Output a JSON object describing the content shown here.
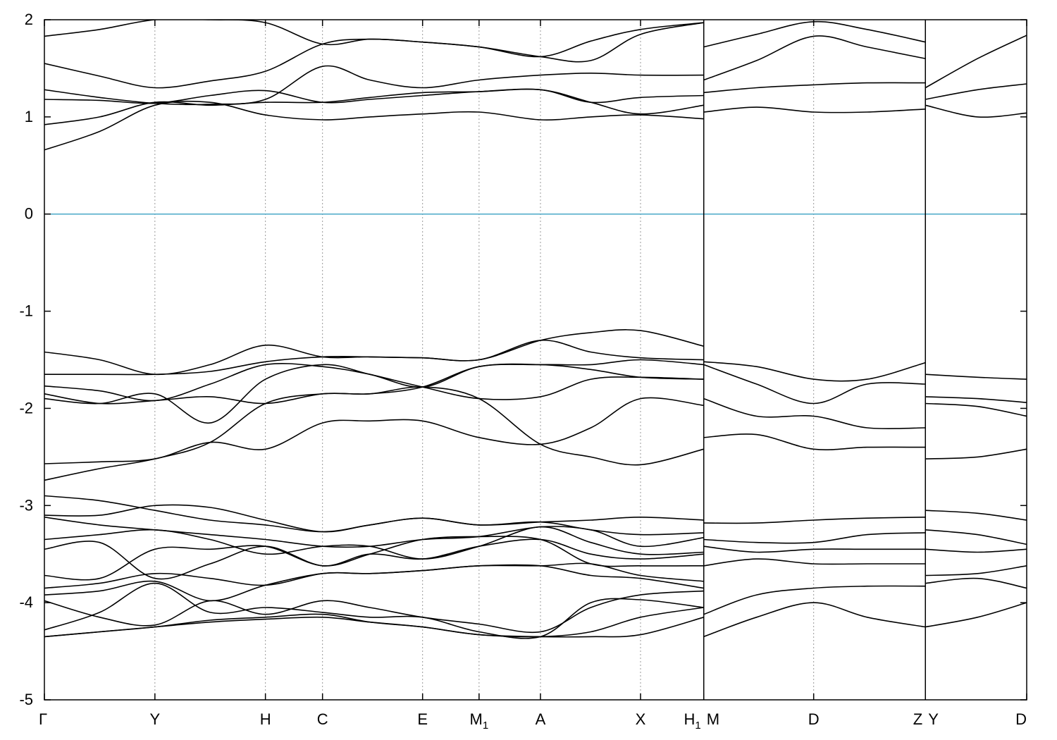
{
  "chart_data": {
    "type": "line",
    "title": "",
    "xlabel": "",
    "ylabel": "",
    "ylim": [
      -5,
      2
    ],
    "yticks": [
      {
        "value": -5,
        "label": "-5"
      },
      {
        "value": -4,
        "label": "-4"
      },
      {
        "value": -3,
        "label": "-3"
      },
      {
        "value": -2,
        "label": "-2"
      },
      {
        "value": -1,
        "label": "-1"
      },
      {
        "value": 0,
        "label": "0"
      },
      {
        "value": 1,
        "label": "1"
      },
      {
        "value": 2,
        "label": "2"
      }
    ],
    "xlim": [
      0,
      16.0
    ],
    "kpoints": [
      {
        "label": "Γ",
        "x": 0.0
      },
      {
        "label": "Y",
        "x": 1.8
      },
      {
        "label": "H",
        "x": 3.6
      },
      {
        "label": "C",
        "x": 4.53
      },
      {
        "label": "E",
        "x": 6.16
      },
      {
        "label": "M",
        "sub": "1",
        "x": 7.08
      },
      {
        "label": "A",
        "x": 8.08
      },
      {
        "label": "X",
        "x": 9.71
      },
      {
        "label": "H",
        "sub": "1",
        "label2": "M",
        "x": 10.74
      },
      {
        "label": "D",
        "x": 12.53
      },
      {
        "label": "Z",
        "label2": "Y",
        "x": 14.35
      },
      {
        "label": "D",
        "x": 16.0
      }
    ],
    "fermi_level": 0,
    "fermi_color": "#4aa8c8",
    "line_color": "#000000",
    "grid": "vertical dotted at k-points",
    "series": [
      {
        "x": [
          0,
          0.9,
          1.8,
          2.7,
          3.6,
          4.53,
          5.3,
          6.16,
          7.08,
          8.08,
          8.9,
          9.71,
          10.74
        ],
        "values": [
          0.66,
          0.85,
          1.12,
          1.15,
          1.02,
          0.97,
          1.0,
          1.03,
          1.05,
          0.97,
          1.0,
          1.02,
          0.98
        ]
      },
      {
        "x": [
          0,
          0.9,
          1.8,
          2.7,
          3.6,
          4.53,
          5.3,
          6.16,
          7.08,
          8.08,
          8.9,
          9.71,
          10.74
        ],
        "values": [
          0.92,
          1.0,
          1.15,
          1.12,
          1.15,
          1.15,
          1.2,
          1.25,
          1.26,
          1.28,
          1.15,
          1.03,
          1.12
        ]
      },
      {
        "x": [
          0,
          0.9,
          1.8,
          2.7,
          3.6,
          4.53,
          5.3,
          6.16,
          7.08,
          8.08,
          8.9,
          9.71,
          10.74
        ],
        "values": [
          1.18,
          1.17,
          1.14,
          1.22,
          1.27,
          1.15,
          1.18,
          1.22,
          1.26,
          1.28,
          1.15,
          1.2,
          1.22
        ]
      },
      {
        "x": [
          0,
          0.9,
          1.8,
          2.7,
          3.6,
          4.53,
          5.3,
          6.16,
          7.08,
          8.08,
          8.9,
          9.71,
          10.74
        ],
        "values": [
          1.28,
          1.2,
          1.14,
          1.13,
          1.18,
          1.52,
          1.38,
          1.3,
          1.38,
          1.43,
          1.45,
          1.43,
          1.43
        ]
      },
      {
        "x": [
          0,
          0.9,
          1.8,
          2.7,
          3.6,
          4.53,
          5.3,
          6.16,
          7.08,
          8.08,
          8.9,
          9.71,
          10.74
        ],
        "values": [
          1.55,
          1.42,
          1.3,
          1.37,
          1.47,
          1.75,
          1.8,
          1.77,
          1.72,
          1.62,
          1.58,
          1.85,
          1.97
        ]
      },
      {
        "x": [
          0,
          0.9,
          1.8,
          2.7,
          3.6,
          4.53,
          5.3,
          6.16,
          7.08,
          8.08,
          8.9,
          9.71,
          10.74
        ],
        "values": [
          1.83,
          1.9,
          2.0,
          2.0,
          1.97,
          1.75,
          1.8,
          1.77,
          1.72,
          1.62,
          1.78,
          1.9,
          1.97
        ]
      },
      {
        "x": [
          10.74,
          11.6,
          12.53,
          13.4,
          14.35
        ],
        "values": [
          1.05,
          1.1,
          1.05,
          1.05,
          1.08
        ]
      },
      {
        "x": [
          10.74,
          11.6,
          12.53,
          13.4,
          14.35
        ],
        "values": [
          1.25,
          1.3,
          1.33,
          1.35,
          1.35
        ]
      },
      {
        "x": [
          10.74,
          11.6,
          12.53,
          13.4,
          14.35
        ],
        "values": [
          1.38,
          1.58,
          1.83,
          1.72,
          1.6
        ]
      },
      {
        "x": [
          10.74,
          11.6,
          12.53,
          13.4,
          14.35
        ],
        "values": [
          1.72,
          1.85,
          1.98,
          1.9,
          1.77
        ]
      },
      {
        "x": [
          14.35,
          15.2,
          16.0
        ],
        "values": [
          1.12,
          1.0,
          1.04
        ]
      },
      {
        "x": [
          14.35,
          15.2,
          16.0
        ],
        "values": [
          1.18,
          1.28,
          1.34
        ]
      },
      {
        "x": [
          14.35,
          15.2,
          16.0
        ],
        "values": [
          1.3,
          1.6,
          1.84
        ]
      },
      {
        "x": [
          0,
          0.9,
          1.8,
          2.7,
          3.6,
          4.53,
          5.3,
          6.16,
          7.08,
          8.08,
          8.9,
          9.71,
          10.74
        ],
        "values": [
          -1.42,
          -1.5,
          -1.65,
          -1.55,
          -1.35,
          -1.47,
          -1.47,
          -1.48,
          -1.5,
          -1.3,
          -1.22,
          -1.2,
          -1.36
        ]
      },
      {
        "x": [
          0,
          0.9,
          1.8,
          2.7,
          3.6,
          4.53,
          5.3,
          6.16,
          7.08,
          8.08,
          8.9,
          9.71,
          10.74
        ],
        "values": [
          -1.65,
          -1.65,
          -1.65,
          -1.62,
          -1.52,
          -1.47,
          -1.47,
          -1.48,
          -1.5,
          -1.3,
          -1.42,
          -1.48,
          -1.5
        ]
      },
      {
        "x": [
          0,
          0.9,
          1.8,
          2.7,
          3.6,
          4.53,
          5.3,
          6.16,
          7.08,
          8.08,
          8.9,
          9.71,
          10.74
        ],
        "values": [
          -1.77,
          -1.82,
          -1.92,
          -1.75,
          -1.55,
          -1.57,
          -1.65,
          -1.78,
          -1.57,
          -1.55,
          -1.55,
          -1.5,
          -1.55
        ]
      },
      {
        "x": [
          0,
          0.9,
          1.8,
          2.7,
          3.6,
          4.53,
          5.3,
          6.16,
          7.08,
          8.08,
          8.9,
          9.71,
          10.74
        ],
        "values": [
          -1.85,
          -1.95,
          -1.92,
          -1.88,
          -1.95,
          -1.85,
          -1.85,
          -1.78,
          -1.57,
          -1.55,
          -1.6,
          -1.68,
          -1.7
        ]
      },
      {
        "x": [
          0,
          0.9,
          1.8,
          2.7,
          3.6,
          4.53,
          5.3,
          6.16,
          7.08,
          8.08,
          8.9,
          9.71,
          10.74
        ],
        "values": [
          -1.9,
          -1.95,
          -1.85,
          -2.15,
          -1.7,
          -1.55,
          -1.65,
          -1.78,
          -1.9,
          -1.88,
          -1.7,
          -1.68,
          -1.7
        ]
      },
      {
        "x": [
          0,
          0.9,
          1.8,
          2.7,
          3.6,
          4.53,
          5.3,
          6.16,
          7.08,
          8.08,
          8.9,
          9.71,
          10.74
        ],
        "values": [
          -2.57,
          -2.55,
          -2.52,
          -2.35,
          -2.42,
          -2.15,
          -2.13,
          -2.13,
          -2.3,
          -2.37,
          -2.2,
          -1.9,
          -1.97
        ]
      },
      {
        "x": [
          0,
          0.9,
          1.8,
          2.7,
          3.6,
          4.53,
          5.3,
          6.16,
          7.08,
          8.08,
          8.9,
          9.71,
          10.74
        ],
        "values": [
          -2.74,
          -2.62,
          -2.52,
          -2.35,
          -1.95,
          -1.85,
          -1.85,
          -1.78,
          -1.9,
          -2.37,
          -2.5,
          -2.58,
          -2.42
        ]
      },
      {
        "x": [
          10.74,
          11.6,
          12.53,
          13.4,
          14.35
        ],
        "values": [
          -1.52,
          -1.57,
          -1.7,
          -1.7,
          -1.53
        ]
      },
      {
        "x": [
          10.74,
          11.6,
          12.53,
          13.4,
          14.35
        ],
        "values": [
          -1.55,
          -1.75,
          -1.95,
          -1.75,
          -1.75
        ]
      },
      {
        "x": [
          10.74,
          11.6,
          12.53,
          13.4,
          14.35
        ],
        "values": [
          -1.9,
          -2.08,
          -2.08,
          -2.2,
          -2.2
        ]
      },
      {
        "x": [
          10.74,
          11.6,
          12.53,
          13.4,
          14.35
        ],
        "values": [
          -2.3,
          -2.27,
          -2.42,
          -2.4,
          -2.4
        ]
      },
      {
        "x": [
          14.35,
          15.2,
          16.0
        ],
        "values": [
          -1.65,
          -1.68,
          -1.7
        ]
      },
      {
        "x": [
          14.35,
          15.2,
          16.0
        ],
        "values": [
          -1.88,
          -1.9,
          -1.94
        ]
      },
      {
        "x": [
          14.35,
          15.2,
          16.0
        ],
        "values": [
          -1.95,
          -1.98,
          -2.08
        ]
      },
      {
        "x": [
          14.35,
          15.2,
          16.0
        ],
        "values": [
          -2.52,
          -2.5,
          -2.42
        ]
      },
      {
        "x": [
          0,
          0.9,
          1.8,
          2.7,
          3.6,
          4.53,
          5.3,
          6.16,
          7.08,
          8.08,
          8.9,
          9.71,
          10.74
        ],
        "values": [
          -2.9,
          -2.95,
          -3.05,
          -3.15,
          -3.2,
          -3.27,
          -3.2,
          -3.13,
          -3.2,
          -3.17,
          -3.15,
          -3.12,
          -3.15
        ]
      },
      {
        "x": [
          0,
          0.9,
          1.8,
          2.7,
          3.6,
          4.53,
          5.3,
          6.16,
          7.08,
          8.08,
          8.9,
          9.71,
          10.74
        ],
        "values": [
          -3.1,
          -3.1,
          -3.0,
          -3.02,
          -3.15,
          -3.27,
          -3.2,
          -3.13,
          -3.2,
          -3.17,
          -3.25,
          -3.3,
          -3.28
        ]
      },
      {
        "x": [
          0,
          0.9,
          1.8,
          2.7,
          3.6,
          4.53,
          5.3,
          6.16,
          7.08,
          8.08,
          8.9,
          9.71,
          10.74
        ],
        "values": [
          -3.12,
          -3.2,
          -3.25,
          -3.3,
          -3.35,
          -3.42,
          -3.42,
          -3.35,
          -3.32,
          -3.22,
          -3.25,
          -3.42,
          -3.33
        ]
      },
      {
        "x": [
          0,
          0.9,
          1.8,
          2.7,
          3.6,
          4.53,
          5.3,
          6.16,
          7.08,
          8.08,
          8.9,
          9.71,
          10.74
        ],
        "values": [
          -3.35,
          -3.3,
          -3.25,
          -3.35,
          -3.5,
          -3.42,
          -3.42,
          -3.55,
          -3.42,
          -3.22,
          -3.38,
          -3.5,
          -3.48
        ]
      },
      {
        "x": [
          0,
          0.9,
          1.8,
          2.7,
          3.6,
          4.53,
          5.3,
          6.16,
          7.08,
          8.08,
          8.9,
          9.71,
          10.74
        ],
        "values": [
          -3.45,
          -3.38,
          -3.75,
          -3.6,
          -3.42,
          -3.62,
          -3.5,
          -3.55,
          -3.42,
          -3.35,
          -3.5,
          -3.55,
          -3.5
        ]
      },
      {
        "x": [
          0,
          0.9,
          1.8,
          2.7,
          3.6,
          4.53,
          5.3,
          6.16,
          7.08,
          8.08,
          8.9,
          9.71,
          10.74
        ],
        "values": [
          -3.72,
          -3.75,
          -3.45,
          -3.45,
          -3.42,
          -3.62,
          -3.5,
          -3.35,
          -3.32,
          -3.35,
          -3.6,
          -3.62,
          -3.62
        ]
      },
      {
        "x": [
          0,
          0.9,
          1.8,
          2.7,
          3.6,
          4.53,
          5.3,
          6.16,
          7.08,
          8.08,
          8.9,
          9.71,
          10.74
        ],
        "values": [
          -3.85,
          -3.8,
          -3.7,
          -3.75,
          -3.82,
          -3.7,
          -3.7,
          -3.67,
          -3.62,
          -3.62,
          -3.6,
          -3.72,
          -3.78
        ]
      },
      {
        "x": [
          0,
          0.9,
          1.8,
          2.7,
          3.6,
          4.53,
          5.3,
          6.16,
          7.08,
          8.08,
          8.9,
          9.71,
          10.74
        ],
        "values": [
          -3.92,
          -3.88,
          -3.78,
          -3.98,
          -3.82,
          -3.7,
          -3.7,
          -3.67,
          -3.62,
          -3.62,
          -3.72,
          -3.75,
          -3.85
        ]
      },
      {
        "x": [
          0,
          0.9,
          1.8,
          2.7,
          3.6,
          4.53,
          5.3,
          6.16,
          7.08,
          8.08,
          8.9,
          9.71,
          10.74
        ],
        "values": [
          -3.98,
          -4.15,
          -4.23,
          -3.98,
          -4.12,
          -3.98,
          -4.05,
          -4.15,
          -4.22,
          -4.3,
          -4.05,
          -3.92,
          -3.88
        ]
      },
      {
        "x": [
          0,
          0.9,
          1.8,
          2.7,
          3.6,
          4.53,
          5.3,
          6.16,
          7.08,
          8.08,
          8.9,
          9.71,
          10.74
        ],
        "values": [
          -4.28,
          -4.1,
          -3.8,
          -4.1,
          -4.05,
          -4.1,
          -4.15,
          -4.15,
          -4.3,
          -4.35,
          -4.0,
          -3.97,
          -4.05
        ]
      },
      {
        "x": [
          0,
          0.9,
          1.8,
          2.7,
          3.6,
          4.53,
          5.3,
          6.16,
          7.08,
          8.08,
          8.9,
          9.71,
          10.74
        ],
        "values": [
          -4.35,
          -4.3,
          -4.25,
          -4.18,
          -4.15,
          -4.12,
          -4.2,
          -4.25,
          -4.33,
          -4.35,
          -4.3,
          -4.15,
          -4.05
        ]
      },
      {
        "x": [
          0,
          0.9,
          1.8,
          2.7,
          3.6,
          4.53,
          5.3,
          6.16,
          7.08,
          8.08,
          8.9,
          9.71,
          10.74
        ],
        "values": [
          -4.35,
          -4.3,
          -4.25,
          -4.2,
          -4.17,
          -4.15,
          -4.2,
          -4.25,
          -4.33,
          -4.35,
          -4.35,
          -4.33,
          -4.15
        ]
      },
      {
        "x": [
          10.74,
          11.6,
          12.53,
          13.4,
          14.35
        ],
        "values": [
          -3.18,
          -3.18,
          -3.15,
          -3.13,
          -3.12
        ]
      },
      {
        "x": [
          10.74,
          11.6,
          12.53,
          13.4,
          14.35
        ],
        "values": [
          -3.35,
          -3.38,
          -3.38,
          -3.3,
          -3.28
        ]
      },
      {
        "x": [
          10.74,
          11.6,
          12.53,
          13.4,
          14.35
        ],
        "values": [
          -3.42,
          -3.48,
          -3.45,
          -3.45,
          -3.45
        ]
      },
      {
        "x": [
          10.74,
          11.6,
          12.53,
          13.4,
          14.35
        ],
        "values": [
          -3.62,
          -3.55,
          -3.6,
          -3.6,
          -3.6
        ]
      },
      {
        "x": [
          10.74,
          11.6,
          12.53,
          13.4,
          14.35
        ],
        "values": [
          -4.12,
          -3.92,
          -3.85,
          -3.83,
          -3.83
        ]
      },
      {
        "x": [
          10.74,
          11.6,
          12.53,
          13.4,
          14.35
        ],
        "values": [
          -4.35,
          -4.15,
          -4.0,
          -4.15,
          -4.25
        ]
      },
      {
        "x": [
          14.35,
          15.2,
          16.0
        ],
        "values": [
          -3.05,
          -3.08,
          -3.15
        ]
      },
      {
        "x": [
          14.35,
          15.2,
          16.0
        ],
        "values": [
          -3.25,
          -3.3,
          -3.4
        ]
      },
      {
        "x": [
          14.35,
          15.2,
          16.0
        ],
        "values": [
          -3.45,
          -3.48,
          -3.45
        ]
      },
      {
        "x": [
          14.35,
          15.2,
          16.0
        ],
        "values": [
          -3.72,
          -3.7,
          -3.62
        ]
      },
      {
        "x": [
          14.35,
          15.2,
          16.0
        ],
        "values": [
          -3.8,
          -3.75,
          -3.85
        ]
      },
      {
        "x": [
          14.35,
          15.2,
          16.0
        ],
        "values": [
          -4.25,
          -4.15,
          -4.0
        ]
      }
    ]
  }
}
